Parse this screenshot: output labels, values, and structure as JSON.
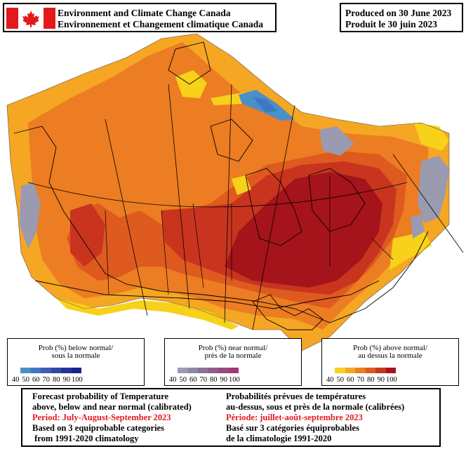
{
  "header": {
    "agency_en": "Environment and Climate Change Canada",
    "agency_fr": "Environnement et Changement climatique Canada",
    "produced_en": "Produced on 30 June 2023",
    "produced_fr": "Produit le 30 juin 2023"
  },
  "colors": {
    "flag_red": "#e31a1c",
    "below": [
      "#4a90c8",
      "#3f78c0",
      "#3a5fb5",
      "#3048a5",
      "#233397",
      "#1a2288"
    ],
    "near": [
      "#9a9ab0",
      "#8f86a6",
      "#8c7098",
      "#905c8c",
      "#9a4a80",
      "#a03a70"
    ],
    "above": [
      "#f7d11a",
      "#f5a623",
      "#ec7d22",
      "#de5a1f",
      "#c8341e",
      "#a5141a"
    ],
    "outline": "#000000"
  },
  "legends": {
    "below": {
      "title_en": "Prob (%) below normal/",
      "title_fr": "sous la normale",
      "ticks": [
        "40",
        "50",
        "60",
        "70",
        "80",
        "90",
        "100"
      ]
    },
    "near": {
      "title_en": "Prob (%) near normal/",
      "title_fr": "près de la normale",
      "ticks": [
        "40",
        "50",
        "60",
        "70",
        "80",
        "90",
        "100"
      ]
    },
    "above": {
      "title_en": "Prob (%) above normal/",
      "title_fr": "au dessus la normale",
      "ticks": [
        "40",
        "50",
        "60",
        "70",
        "80",
        "90",
        "100"
      ]
    }
  },
  "footer": {
    "en": {
      "line1": "Forecast probability of Temperature",
      "line2": "above, below and near normal (calibrated)",
      "period": "Period: July-August-September 2023",
      "line4": "Based on 3 equiprobable categories",
      "line5": " from 1991-2020 climatology"
    },
    "fr": {
      "line1": "Probabilités prévues de températures",
      "line2": "au-dessus, sous et près de la normale (calibrées)",
      "period": "Période: juillet-août-septembre 2023",
      "line4": "Basé sur 3 catégories équiprobables",
      "line5": "de la climatologie 1991-2020"
    }
  }
}
